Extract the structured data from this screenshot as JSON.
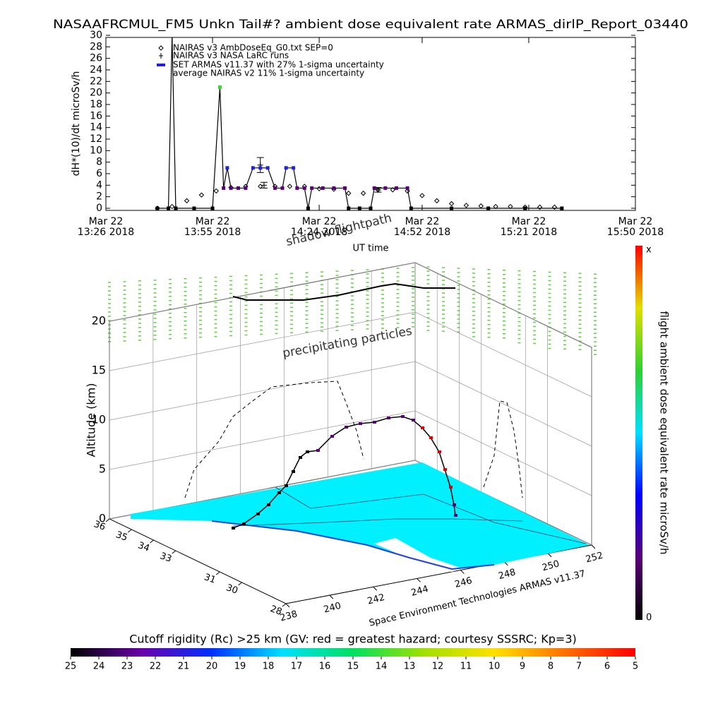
{
  "chart_data": [
    {
      "type": "line",
      "title": "NASAAFRCMUL_FM5 Unkn Tail#? ambient dose equivalent rate ARMAS_dirlP_Report_03440",
      "x_label": "UT time",
      "y_label": "dH*(10)/dt microSv/h",
      "xlim": [
        "2018-03-22 13:26",
        "2018-03-22 15:50"
      ],
      "xticks": [
        {
          "value": "2018-03-22 13:26",
          "label": [
            "Mar 22",
            "13:26 2018"
          ]
        },
        {
          "value": "2018-03-22 13:55",
          "label": [
            "Mar 22",
            "13:55 2018"
          ]
        },
        {
          "value": "2018-03-22 14:24",
          "label": [
            "Mar 22",
            "14:24 2018"
          ]
        },
        {
          "value": "2018-03-22 14:52",
          "label": [
            "Mar 22",
            "14:52 2018"
          ]
        },
        {
          "value": "2018-03-22 15:21",
          "label": [
            "Mar 22",
            "15:21 2018"
          ]
        },
        {
          "value": "2018-03-22 15:50",
          "label": [
            "Mar 22",
            "15:50 2018"
          ]
        }
      ],
      "ylim": [
        0,
        30
      ],
      "yticks": [
        0,
        2,
        4,
        6,
        8,
        10,
        12,
        14,
        16,
        18,
        20,
        22,
        24,
        26,
        28,
        30
      ],
      "series": [
        {
          "name": "NAIRAS v3 AmbDoseEq_G0.txt SEP=0",
          "marker": "diamond",
          "color": "#000000",
          "x": [
            "2018-03-22 13:40",
            "2018-03-22 13:44",
            "2018-03-22 13:48",
            "2018-03-22 13:52",
            "2018-03-22 13:56",
            "2018-03-22 14:00",
            "2018-03-22 14:04",
            "2018-03-22 14:08",
            "2018-03-22 14:12",
            "2018-03-22 14:16",
            "2018-03-22 14:20",
            "2018-03-22 14:24",
            "2018-03-22 14:28",
            "2018-03-22 14:32",
            "2018-03-22 14:36",
            "2018-03-22 14:40",
            "2018-03-22 14:44",
            "2018-03-22 14:48",
            "2018-03-22 14:52",
            "2018-03-22 14:56",
            "2018-03-22 15:00",
            "2018-03-22 15:04",
            "2018-03-22 15:08",
            "2018-03-22 15:12",
            "2018-03-22 15:16",
            "2018-03-22 15:20",
            "2018-03-22 15:24",
            "2018-03-22 15:28"
          ],
          "values": [
            0,
            0.3,
            1.3,
            2.3,
            3.0,
            3.6,
            3.8,
            3.8,
            3.8,
            3.8,
            3.8,
            3.4,
            3.3,
            2.6,
            2.6,
            3.2,
            3.2,
            3.0,
            2.2,
            1.3,
            0.8,
            0.5,
            0.4,
            0.3,
            0.3,
            0.2,
            0.2,
            0.2
          ]
        },
        {
          "name": "NAIRAS v3 NASA LaRC runs",
          "marker": "plus",
          "color": "#000000",
          "x": [
            "2018-03-22 14:08",
            "2018-03-22 14:09",
            "2018-03-22 14:40"
          ],
          "values": [
            7.5,
            4.0,
            3.2
          ],
          "errors": [
            1.3,
            0.5,
            0.4
          ]
        },
        {
          "name": "SET ARMAS v11.37 with 27% 1-sigma uncertainty",
          "marker": "square",
          "color": "#2020e0",
          "line_color": "#000000",
          "x": [
            "2018-03-22 13:40",
            "2018-03-22 13:43",
            "2018-03-22 13:44",
            "2018-03-22 13:45",
            "2018-03-22 13:50",
            "2018-03-22 13:55",
            "2018-03-22 13:57",
            "2018-03-22 13:58",
            "2018-03-22 13:59",
            "2018-03-22 14:00",
            "2018-03-22 14:02",
            "2018-03-22 14:04",
            "2018-03-22 14:06",
            "2018-03-22 14:08",
            "2018-03-22 14:10",
            "2018-03-22 14:12",
            "2018-03-22 14:14",
            "2018-03-22 14:15",
            "2018-03-22 14:17",
            "2018-03-22 14:18",
            "2018-03-22 14:20",
            "2018-03-22 14:21",
            "2018-03-22 14:22",
            "2018-03-22 14:25",
            "2018-03-22 14:28",
            "2018-03-22 14:31",
            "2018-03-22 14:32",
            "2018-03-22 14:35",
            "2018-03-22 14:38",
            "2018-03-22 14:39",
            "2018-03-22 14:42",
            "2018-03-22 14:45",
            "2018-03-22 14:48",
            "2018-03-22 14:49",
            "2018-03-22 15:00",
            "2018-03-22 15:10",
            "2018-03-22 15:20",
            "2018-03-22 15:30"
          ],
          "values": [
            0,
            0,
            30,
            0,
            0,
            0,
            21,
            3.5,
            7,
            3.5,
            3.5,
            3.5,
            7,
            7,
            7,
            3.5,
            3.5,
            7,
            7,
            3.5,
            3.5,
            0,
            3.5,
            3.5,
            3.5,
            3.5,
            0,
            0,
            0,
            3.5,
            3.5,
            3.5,
            3.5,
            0,
            0,
            0,
            0,
            0
          ],
          "marker_colors": [
            "#000000",
            "#000000",
            "#000000",
            "#000000",
            "#000000",
            "#000000",
            "#30e030",
            "#5a0078",
            "#2020e0",
            "#5a0078",
            "#5a0078",
            "#5a0078",
            "#2020e0",
            "#2020e0",
            "#2020e0",
            "#5a0078",
            "#5a0078",
            "#2020e0",
            "#2020e0",
            "#5a0078",
            "#5a0078",
            "#000000",
            "#5a0078",
            "#5a0078",
            "#5a0078",
            "#5a0078",
            "#000000",
            "#000000",
            "#000000",
            "#5a0078",
            "#5a0078",
            "#5a0078",
            "#5a0078",
            "#000000",
            "#000000",
            "#000000",
            "#000000",
            "#000000"
          ]
        }
      ],
      "legend_note": "average NAIRAS v2 11% 1-sigma uncertainty"
    },
    {
      "type": "surface3d",
      "z_label": "Altitude (km)",
      "zlim": [
        0,
        20
      ],
      "zticks": [
        0,
        5,
        10,
        15,
        20
      ],
      "xlim": [
        238,
        252
      ],
      "xticks": [
        238,
        240,
        242,
        244,
        246,
        248,
        250,
        252
      ],
      "ylim": [
        28,
        36
      ],
      "yticks": [
        36,
        35,
        34,
        33,
        31,
        30,
        28
      ],
      "annotations": [
        "shadow flightpath",
        "precipitating particles",
        "Space Environment Technologies ARMAS v11.37"
      ],
      "colorbar_label": "flight ambient dose equivalent rate microSv/h",
      "colorbar_top": "x",
      "colorbar_bottom": 0,
      "colorbar_colors": [
        "#000000",
        "#5a0078",
        "#0000ff",
        "#00e0ff",
        "#30d030",
        "#e0e000",
        "#ff0000"
      ]
    },
    {
      "type": "colorbar",
      "title": "Cutoff rigidity (Rc) >25 km (GV: red = greatest hazard; courtesy SSSRC; Kp=3)",
      "ticks": [
        25,
        24,
        23,
        22,
        21,
        20,
        19,
        18,
        17,
        16,
        15,
        14,
        13,
        12,
        11,
        10,
        9,
        8,
        7,
        6,
        5
      ],
      "colors": [
        "#000000",
        "#6a00a8",
        "#0030ff",
        "#00e0ff",
        "#00e060",
        "#a0e000",
        "#ffe000",
        "#ff7000",
        "#ff0000"
      ]
    }
  ]
}
